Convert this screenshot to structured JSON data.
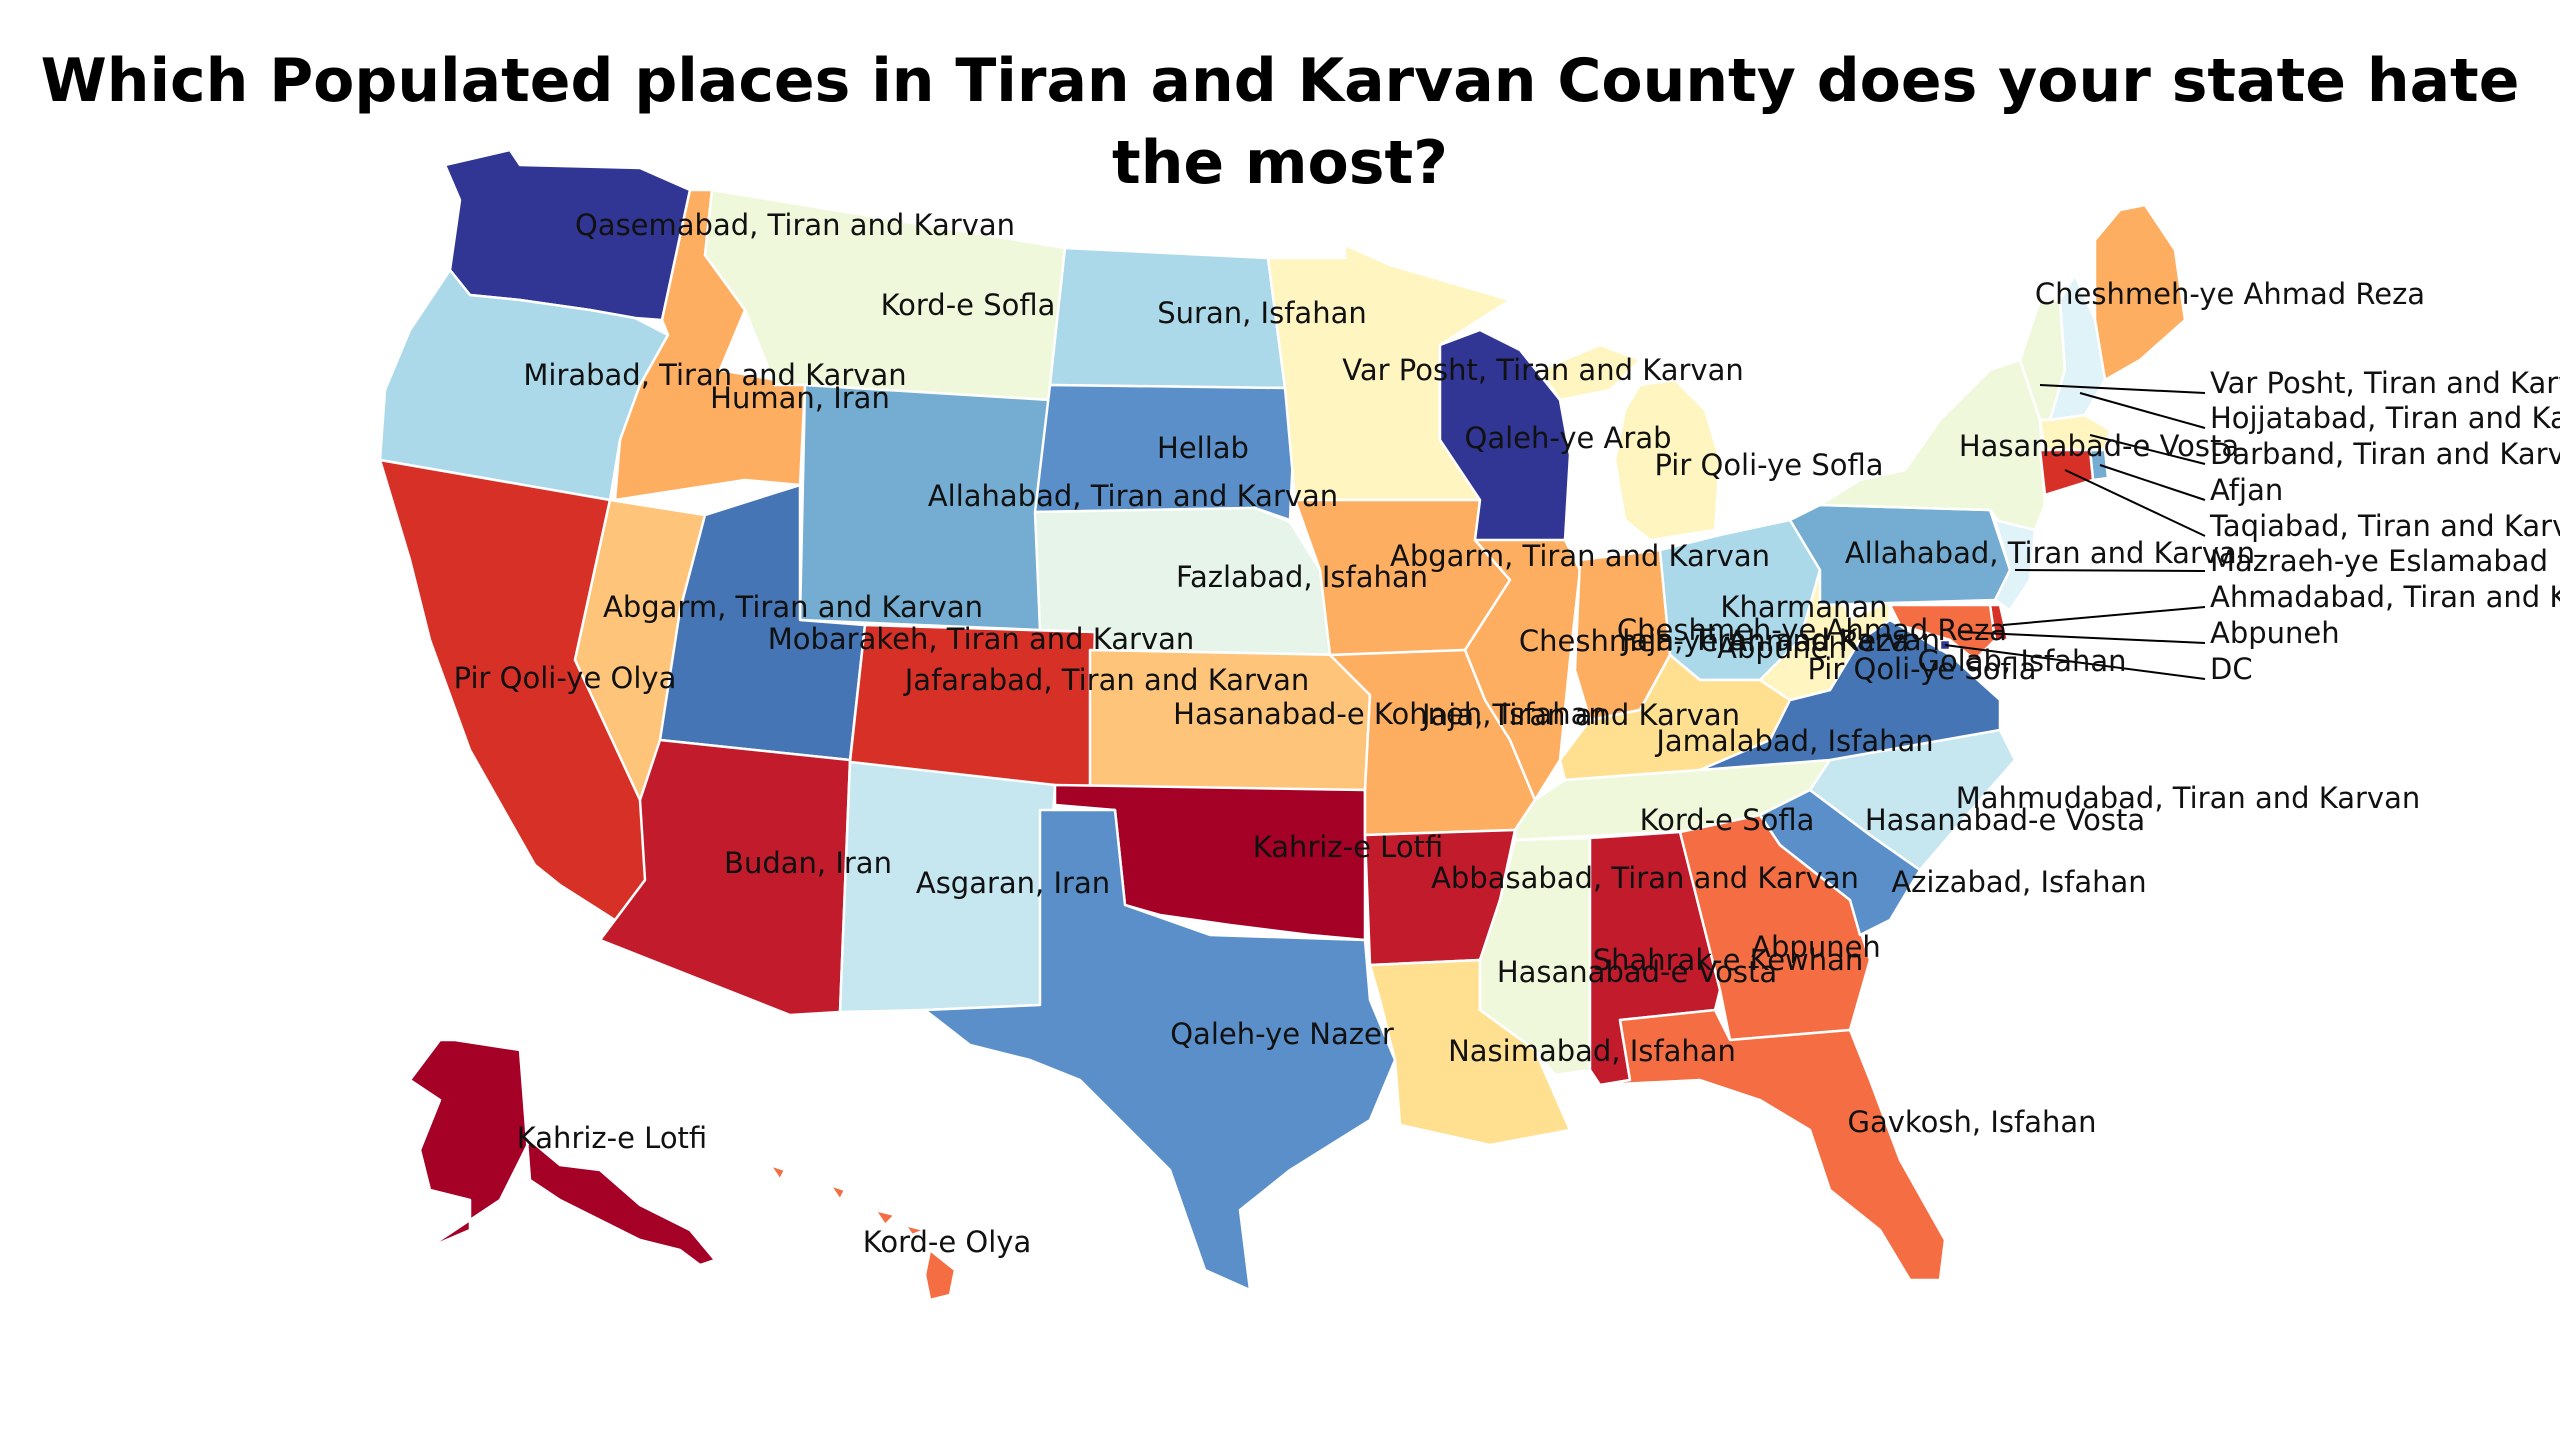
{
  "title": "Which Populated places in Tiran and Karvan County does your state hate the most?",
  "colors": {
    "dark_red": "#a50026",
    "red": "#c11b2c",
    "red_orange": "#d73027",
    "orange_red": "#f46d43",
    "orange": "#fdae61",
    "light_orange": "#fdc47a",
    "pale_yellow": "#fee090",
    "cream": "#fef5c0",
    "pale_green": "#f0f8dc",
    "pale_mint": "#e6f4ea",
    "pale_blue": "#e0f3f8",
    "light_blue": "#c6e6f0",
    "sky_blue": "#abd9e9",
    "mid_blue": "#74add1",
    "medium_blue": "#5a8fc9",
    "blue": "#4575b4",
    "dark_blue": "#313695"
  },
  "states": [
    {
      "id": "WA",
      "label": "Qasemabad, Tiran and Karvan",
      "color": "dark_blue"
    },
    {
      "id": "OR",
      "label": "Mirabad, Tiran and Karvan",
      "color": "sky_blue"
    },
    {
      "id": "CA",
      "label": "Pir Qoli-ye Olya",
      "color": "red_orange"
    },
    {
      "id": "ID",
      "label": "Human, Iran",
      "color": "orange"
    },
    {
      "id": "NV",
      "label": "Abgarm, Tiran and Karvan",
      "color": "light_orange"
    },
    {
      "id": "MT",
      "label": "Kord-e Sofla",
      "color": "pale_green"
    },
    {
      "id": "WY",
      "label": "Allahabad, Tiran and Karvan",
      "color": "mid_blue"
    },
    {
      "id": "UT",
      "label": "Mobarakeh, Tiran and Karvan",
      "color": "blue"
    },
    {
      "id": "AZ",
      "label": "Budan, Iran",
      "color": "red"
    },
    {
      "id": "CO",
      "label": "Jafarabad, Tiran and Karvan",
      "color": "red_orange"
    },
    {
      "id": "NM",
      "label": "Asgaran, Iran",
      "color": "light_blue"
    },
    {
      "id": "ND",
      "label": "Suran, Isfahan",
      "color": "sky_blue"
    },
    {
      "id": "SD",
      "label": "Hellab",
      "color": "medium_blue"
    },
    {
      "id": "NE",
      "label": "Fazlabad, Isfahan",
      "color": "pale_mint"
    },
    {
      "id": "KS",
      "label": "Hasanabad-e Kohneh, Isfahan",
      "color": "light_orange"
    },
    {
      "id": "OK",
      "label": "Kahriz-e Lotfi",
      "color": "dark_red"
    },
    {
      "id": "TX",
      "label": "Qaleh-ye Nazer",
      "color": "medium_blue"
    },
    {
      "id": "MN",
      "label": "Var Posht, Tiran and Karvan",
      "color": "cream"
    },
    {
      "id": "IA",
      "label": "Abgarm, Tiran and Karvan",
      "color": "orange"
    },
    {
      "id": "MO",
      "label": "Jaja, Tiran and Karvan",
      "color": "orange"
    },
    {
      "id": "AR",
      "label": "Abbasabad, Tiran and Karvan",
      "color": "red"
    },
    {
      "id": "LA",
      "label": "Nasimabad, Isfahan",
      "color": "pale_yellow"
    },
    {
      "id": "WI",
      "label": "Qaleh-ye Arab",
      "color": "dark_blue"
    },
    {
      "id": "IL",
      "label": "Cheshmeh-ye Ahmad Reza",
      "color": "orange"
    },
    {
      "id": "MI",
      "label": "Pir Qoli-ye Sofla",
      "color": "cream"
    },
    {
      "id": "IN",
      "label": "Jaja, Tiran and Karvan",
      "color": "orange"
    },
    {
      "id": "OH",
      "label": "Kharmanan",
      "color": "sky_blue"
    },
    {
      "id": "KY",
      "label": "Jamalabad, Isfahan",
      "color": "pale_yellow"
    },
    {
      "id": "TN",
      "label": "Kord-e Sofla",
      "color": "pale_green"
    },
    {
      "id": "MS",
      "label": "Hasanabad-e Vosta",
      "color": "pale_green"
    },
    {
      "id": "AL",
      "label": "Shahrak-e Kewhan",
      "color": "red"
    },
    {
      "id": "GA",
      "label": "Abpuneh",
      "color": "orange_red"
    },
    {
      "id": "FL",
      "label": "Gavkosh, Isfahan",
      "color": "orange_red"
    },
    {
      "id": "SC",
      "label": "Azizabad, Isfahan",
      "color": "medium_blue"
    },
    {
      "id": "NC",
      "label": "Mahmudabad, Tiran and Karvan",
      "color": "light_blue"
    },
    {
      "id": "VA",
      "label": "Golab, Isfahan",
      "color": "blue"
    },
    {
      "id": "WV",
      "label": "Pir Qoli-ye Sofla",
      "color": "cream"
    },
    {
      "id": "PA",
      "label": "Allahabad, Tiran and Karvan",
      "color": "mid_blue"
    },
    {
      "id": "NY",
      "label": "Hasanabad-e Vosta",
      "color": "pale_green"
    },
    {
      "id": "ME",
      "label": "Cheshmeh-ye Ahmad Reza",
      "color": "orange"
    },
    {
      "id": "VT",
      "label": "Var Posht, Tiran and Karvan",
      "color": "pale_green"
    },
    {
      "id": "NH",
      "label": "Hojjatabad, Tiran and Karvan",
      "color": "pale_blue"
    },
    {
      "id": "MA",
      "label": "Darband, Tiran and Karvan",
      "color": "cream"
    },
    {
      "id": "RI",
      "label": "Afjan",
      "color": "mid_blue"
    },
    {
      "id": "CT",
      "label": "Taqiabad, Tiran and Karvan",
      "color": "red_orange"
    },
    {
      "id": "NJ",
      "label": "Mazraeh-ye Eslamabad",
      "color": "pale_blue"
    },
    {
      "id": "DE",
      "label": "Ahmadabad, Tiran and Karvan",
      "color": "red_orange"
    },
    {
      "id": "MD",
      "label": "Abpuneh",
      "color": "orange_red"
    },
    {
      "id": "DC",
      "label": "DC",
      "color": "dark_blue"
    },
    {
      "id": "AK",
      "label": "Kahriz-e Lotfi",
      "color": "dark_red"
    },
    {
      "id": "HI",
      "label": "Kord-e Olya",
      "color": "orange_red"
    }
  ],
  "extra_labels": [
    "Hasanabad-e Vosta",
    "Cheshmeh-ye Ahmad Reza",
    "Abpuneh"
  ]
}
